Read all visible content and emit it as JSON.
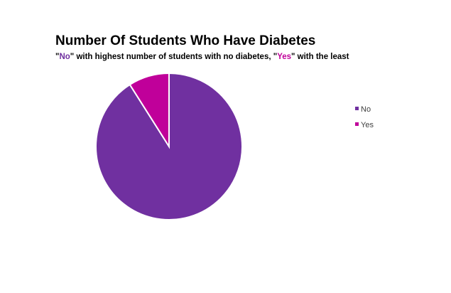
{
  "chart_data": {
    "type": "pie",
    "title": "Number Of Students Who Have Diabetes",
    "subtitle": {
      "parts": [
        {
          "text": "\"",
          "color": "#000000"
        },
        {
          "text": "No",
          "color": "#7030A0"
        },
        {
          "text": "\" with highest number of students with no diabetes, \"",
          "color": "#000000"
        },
        {
          "text": "Yes",
          "color": "#C0009A"
        },
        {
          "text": "\" with the least",
          "color": "#000000"
        }
      ]
    },
    "categories": [
      "No",
      "Yes"
    ],
    "values": [
      91,
      9
    ],
    "colors": [
      "#7030A0",
      "#C0009A"
    ],
    "legend": {
      "position": "right",
      "entries": [
        "No",
        "Yes"
      ]
    }
  }
}
